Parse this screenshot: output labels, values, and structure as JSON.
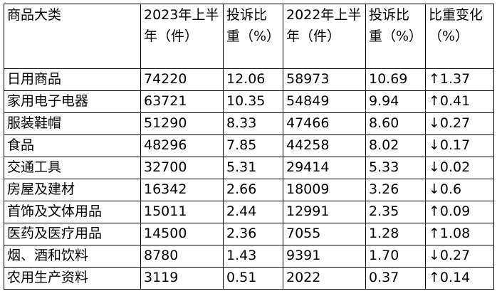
{
  "table": {
    "header": [
      "商品大类",
      "2023年上半年（件）",
      "投诉比重（%）",
      "2022年上半年（件）",
      "投诉比重（%）",
      "比重变化（%）"
    ],
    "rows": [
      [
        "日用商品",
        "74220",
        "12.06",
        "58973",
        "10.69",
        "↑1.37"
      ],
      [
        "家用电子电器",
        "63721",
        "10.35",
        "54849",
        "9.94",
        "↑0.41"
      ],
      [
        "服装鞋帽",
        "51290",
        "8.33",
        "47466",
        "8.60",
        "↓0.27"
      ],
      [
        "食品",
        "48296",
        "7.85",
        "44258",
        "8.02",
        "↓0.17"
      ],
      [
        "交通工具",
        "32700",
        "5.31",
        "29414",
        "5.33",
        "↓0.02"
      ],
      [
        "房屋及建材",
        "16342",
        "2.66",
        "18009",
        "3.26",
        "↓0.6"
      ],
      [
        "首饰及文体用品",
        "15011",
        "2.44",
        "12991",
        "2.35",
        "↑0.09"
      ],
      [
        "医药及医疗用品",
        "14500",
        "2.36",
        "7055",
        "1.28",
        "↑1.08"
      ],
      [
        "烟、酒和饮料",
        "8780",
        "1.43",
        "9391",
        "1.70",
        "↓0.27"
      ],
      [
        "农用生产资料",
        "3119",
        "0.51",
        "2022",
        "0.37",
        "↑0.14"
      ]
    ]
  }
}
